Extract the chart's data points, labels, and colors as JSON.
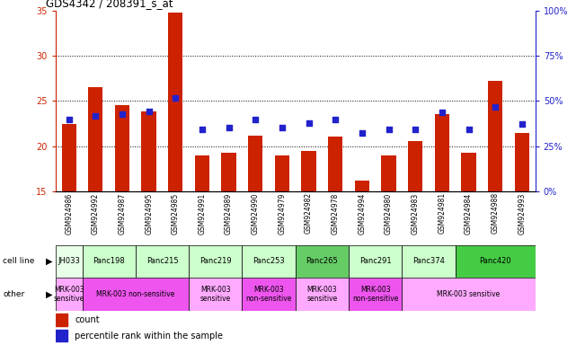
{
  "title": "GDS4342 / 208391_s_at",
  "samples": [
    "GSM924986",
    "GSM924992",
    "GSM924987",
    "GSM924995",
    "GSM924985",
    "GSM924991",
    "GSM924989",
    "GSM924990",
    "GSM924979",
    "GSM924982",
    "GSM924978",
    "GSM924994",
    "GSM924980",
    "GSM924983",
    "GSM924981",
    "GSM924984",
    "GSM924988",
    "GSM924993"
  ],
  "bar_values": [
    22.5,
    26.5,
    24.5,
    23.8,
    34.8,
    19.0,
    19.3,
    21.2,
    19.0,
    19.5,
    21.1,
    16.2,
    19.0,
    20.6,
    23.5,
    19.3,
    27.2,
    21.5
  ],
  "dot_values_left": [
    22.9,
    23.3,
    23.5,
    23.8,
    25.3,
    21.9,
    22.1,
    22.9,
    22.1,
    22.6,
    22.9,
    21.5,
    21.9,
    21.9,
    23.7,
    21.9,
    24.3,
    22.5
  ],
  "ylim_left": [
    15,
    35
  ],
  "ylim_right": [
    0,
    100
  ],
  "yticks_left": [
    15,
    20,
    25,
    30,
    35
  ],
  "yticks_right_vals": [
    0,
    25,
    50,
    75,
    100
  ],
  "yticks_right_labels": [
    "0%",
    "25%",
    "50%",
    "75%",
    "100%"
  ],
  "bar_color": "#cc2200",
  "dot_color": "#2222cc",
  "grid_yticks": [
    20,
    25,
    30
  ],
  "cell_lines": [
    {
      "name": "JH033",
      "start": 0,
      "end": 1,
      "color": "#e8ffe8"
    },
    {
      "name": "Panc198",
      "start": 1,
      "end": 3,
      "color": "#ccffcc"
    },
    {
      "name": "Panc215",
      "start": 3,
      "end": 5,
      "color": "#ccffcc"
    },
    {
      "name": "Panc219",
      "start": 5,
      "end": 7,
      "color": "#ccffcc"
    },
    {
      "name": "Panc253",
      "start": 7,
      "end": 9,
      "color": "#ccffcc"
    },
    {
      "name": "Panc265",
      "start": 9,
      "end": 11,
      "color": "#66cc66"
    },
    {
      "name": "Panc291",
      "start": 11,
      "end": 13,
      "color": "#ccffcc"
    },
    {
      "name": "Panc374",
      "start": 13,
      "end": 15,
      "color": "#ccffcc"
    },
    {
      "name": "Panc420",
      "start": 15,
      "end": 18,
      "color": "#44cc44"
    }
  ],
  "other_groups": [
    {
      "name": "MRK-003\nsensitive",
      "start": 0,
      "end": 1,
      "color": "#ffaaff"
    },
    {
      "name": "MRK-003 non-sensitive",
      "start": 1,
      "end": 5,
      "color": "#ee55ee"
    },
    {
      "name": "MRK-003\nsensitive",
      "start": 5,
      "end": 7,
      "color": "#ffaaff"
    },
    {
      "name": "MRK-003\nnon-sensitive",
      "start": 7,
      "end": 9,
      "color": "#ee55ee"
    },
    {
      "name": "MRK-003\nsensitive",
      "start": 9,
      "end": 11,
      "color": "#ffaaff"
    },
    {
      "name": "MRK-003\nnon-sensitive",
      "start": 11,
      "end": 13,
      "color": "#ee55ee"
    },
    {
      "name": "MRK-003 sensitive",
      "start": 13,
      "end": 18,
      "color": "#ffaaff"
    }
  ],
  "tick_bg_color": "#cccccc",
  "fig_bg": "#ffffff"
}
